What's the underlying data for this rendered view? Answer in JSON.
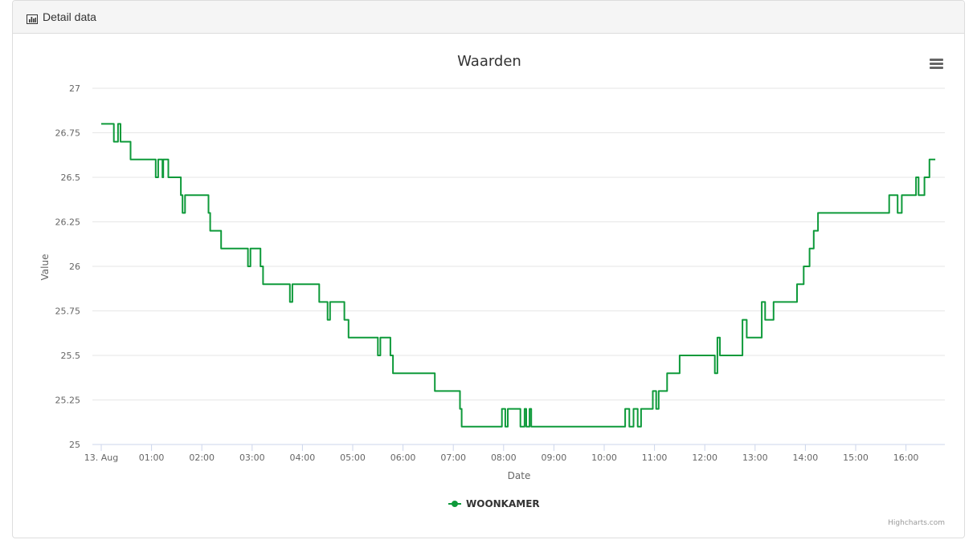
{
  "panel": {
    "title": "Detail data",
    "icon": "bar-chart-icon"
  },
  "chart_data": {
    "type": "line",
    "title": "Waarden",
    "xlabel": "Date",
    "ylabel": "Value",
    "ylim": [
      25,
      27
    ],
    "yticks": [
      "25",
      "25.25",
      "25.5",
      "25.75",
      "26",
      "26.25",
      "26.5",
      "26.75",
      "27"
    ],
    "xlim": [
      "00:00",
      "17:00"
    ],
    "xticks": [
      "13. Aug",
      "01:00",
      "02:00",
      "03:00",
      "04:00",
      "05:00",
      "06:00",
      "07:00",
      "08:00",
      "09:00",
      "10:00",
      "11:00",
      "12:00",
      "13:00",
      "14:00",
      "15:00",
      "16:00"
    ],
    "grid": "horizontal",
    "legend_position": "bottom-center",
    "series": [
      {
        "name": "WOONKAMER",
        "color": "#0e9a3a",
        "x": [
          "00:00",
          "00:15",
          "00:15",
          "00:20",
          "00:20",
          "00:23",
          "00:23",
          "00:24",
          "00:24",
          "00:35",
          "00:35",
          "01:05",
          "01:05",
          "01:08",
          "01:08",
          "01:13",
          "01:13",
          "01:14",
          "01:14",
          "01:20",
          "01:20",
          "01:35",
          "01:35",
          "01:37",
          "01:37",
          "01:40",
          "01:40",
          "02:08",
          "02:08",
          "02:10",
          "02:10",
          "02:23",
          "02:23",
          "02:25",
          "02:25",
          "02:55",
          "02:55",
          "02:58",
          "02:58",
          "03:10",
          "03:10",
          "03:13",
          "03:13",
          "03:45",
          "03:45",
          "03:48",
          "03:48",
          "04:20",
          "04:20",
          "04:30",
          "04:30",
          "04:33",
          "04:33",
          "04:50",
          "04:50",
          "04:55",
          "04:55",
          "05:30",
          "05:30",
          "05:33",
          "05:33",
          "05:45",
          "05:45",
          "05:48",
          "05:48",
          "06:38",
          "06:38",
          "07:08",
          "07:08",
          "07:10",
          "07:10",
          "07:58",
          "07:58",
          "08:02",
          "08:02",
          "08:05",
          "08:05",
          "08:20",
          "08:20",
          "08:25",
          "08:25",
          "08:27",
          "08:27",
          "08:31",
          "08:31",
          "08:33",
          "08:33",
          "10:25",
          "10:25",
          "10:30",
          "10:30",
          "10:35",
          "10:35",
          "10:40",
          "10:40",
          "10:44",
          "10:44",
          "10:58",
          "10:58",
          "11:02",
          "11:02",
          "11:05",
          "11:05",
          "11:15",
          "11:15",
          "11:30",
          "11:30",
          "12:12",
          "12:12",
          "12:15",
          "12:15",
          "12:18",
          "12:18",
          "12:45",
          "12:45",
          "12:50",
          "12:50",
          "13:08",
          "13:08",
          "13:12",
          "13:12",
          "13:22",
          "13:22",
          "13:50",
          "13:50",
          "13:58",
          "13:58",
          "14:05",
          "14:05",
          "14:10",
          "14:10",
          "14:15",
          "14:15",
          "15:40",
          "15:40",
          "15:50",
          "15:50",
          "15:55",
          "15:55",
          "16:12",
          "16:12",
          "16:15",
          "16:15",
          "16:22",
          "16:22",
          "16:28",
          "16:28",
          "16:35"
        ],
        "values": [
          26.8,
          26.8,
          26.7,
          26.7,
          26.8,
          26.8,
          26.7,
          26.7,
          26.7,
          26.7,
          26.6,
          26.6,
          26.5,
          26.5,
          26.6,
          26.6,
          26.5,
          26.5,
          26.6,
          26.6,
          26.5,
          26.5,
          26.4,
          26.4,
          26.3,
          26.3,
          26.4,
          26.4,
          26.3,
          26.3,
          26.2,
          26.2,
          26.1,
          26.1,
          26.1,
          26.1,
          26.0,
          26.0,
          26.1,
          26.1,
          26.0,
          26.0,
          25.9,
          25.9,
          25.8,
          25.8,
          25.9,
          25.9,
          25.8,
          25.8,
          25.7,
          25.7,
          25.8,
          25.8,
          25.7,
          25.7,
          25.6,
          25.6,
          25.5,
          25.5,
          25.6,
          25.6,
          25.5,
          25.5,
          25.4,
          25.4,
          25.3,
          25.3,
          25.2,
          25.2,
          25.1,
          25.1,
          25.2,
          25.2,
          25.1,
          25.1,
          25.2,
          25.2,
          25.1,
          25.1,
          25.2,
          25.2,
          25.1,
          25.1,
          25.2,
          25.2,
          25.1,
          25.1,
          25.2,
          25.2,
          25.1,
          25.1,
          25.2,
          25.2,
          25.1,
          25.1,
          25.2,
          25.2,
          25.3,
          25.3,
          25.2,
          25.2,
          25.3,
          25.3,
          25.4,
          25.4,
          25.5,
          25.5,
          25.4,
          25.4,
          25.6,
          25.6,
          25.5,
          25.5,
          25.7,
          25.7,
          25.6,
          25.6,
          25.8,
          25.8,
          25.7,
          25.7,
          25.8,
          25.8,
          25.9,
          25.9,
          26.0,
          26.0,
          26.1,
          26.1,
          26.2,
          26.2,
          26.3,
          26.3,
          26.4,
          26.4,
          26.3,
          26.3,
          26.4,
          26.4,
          26.5,
          26.5,
          26.4,
          26.4,
          26.5,
          26.5,
          26.6,
          26.6
        ]
      }
    ],
    "credits": "Highcharts.com"
  }
}
